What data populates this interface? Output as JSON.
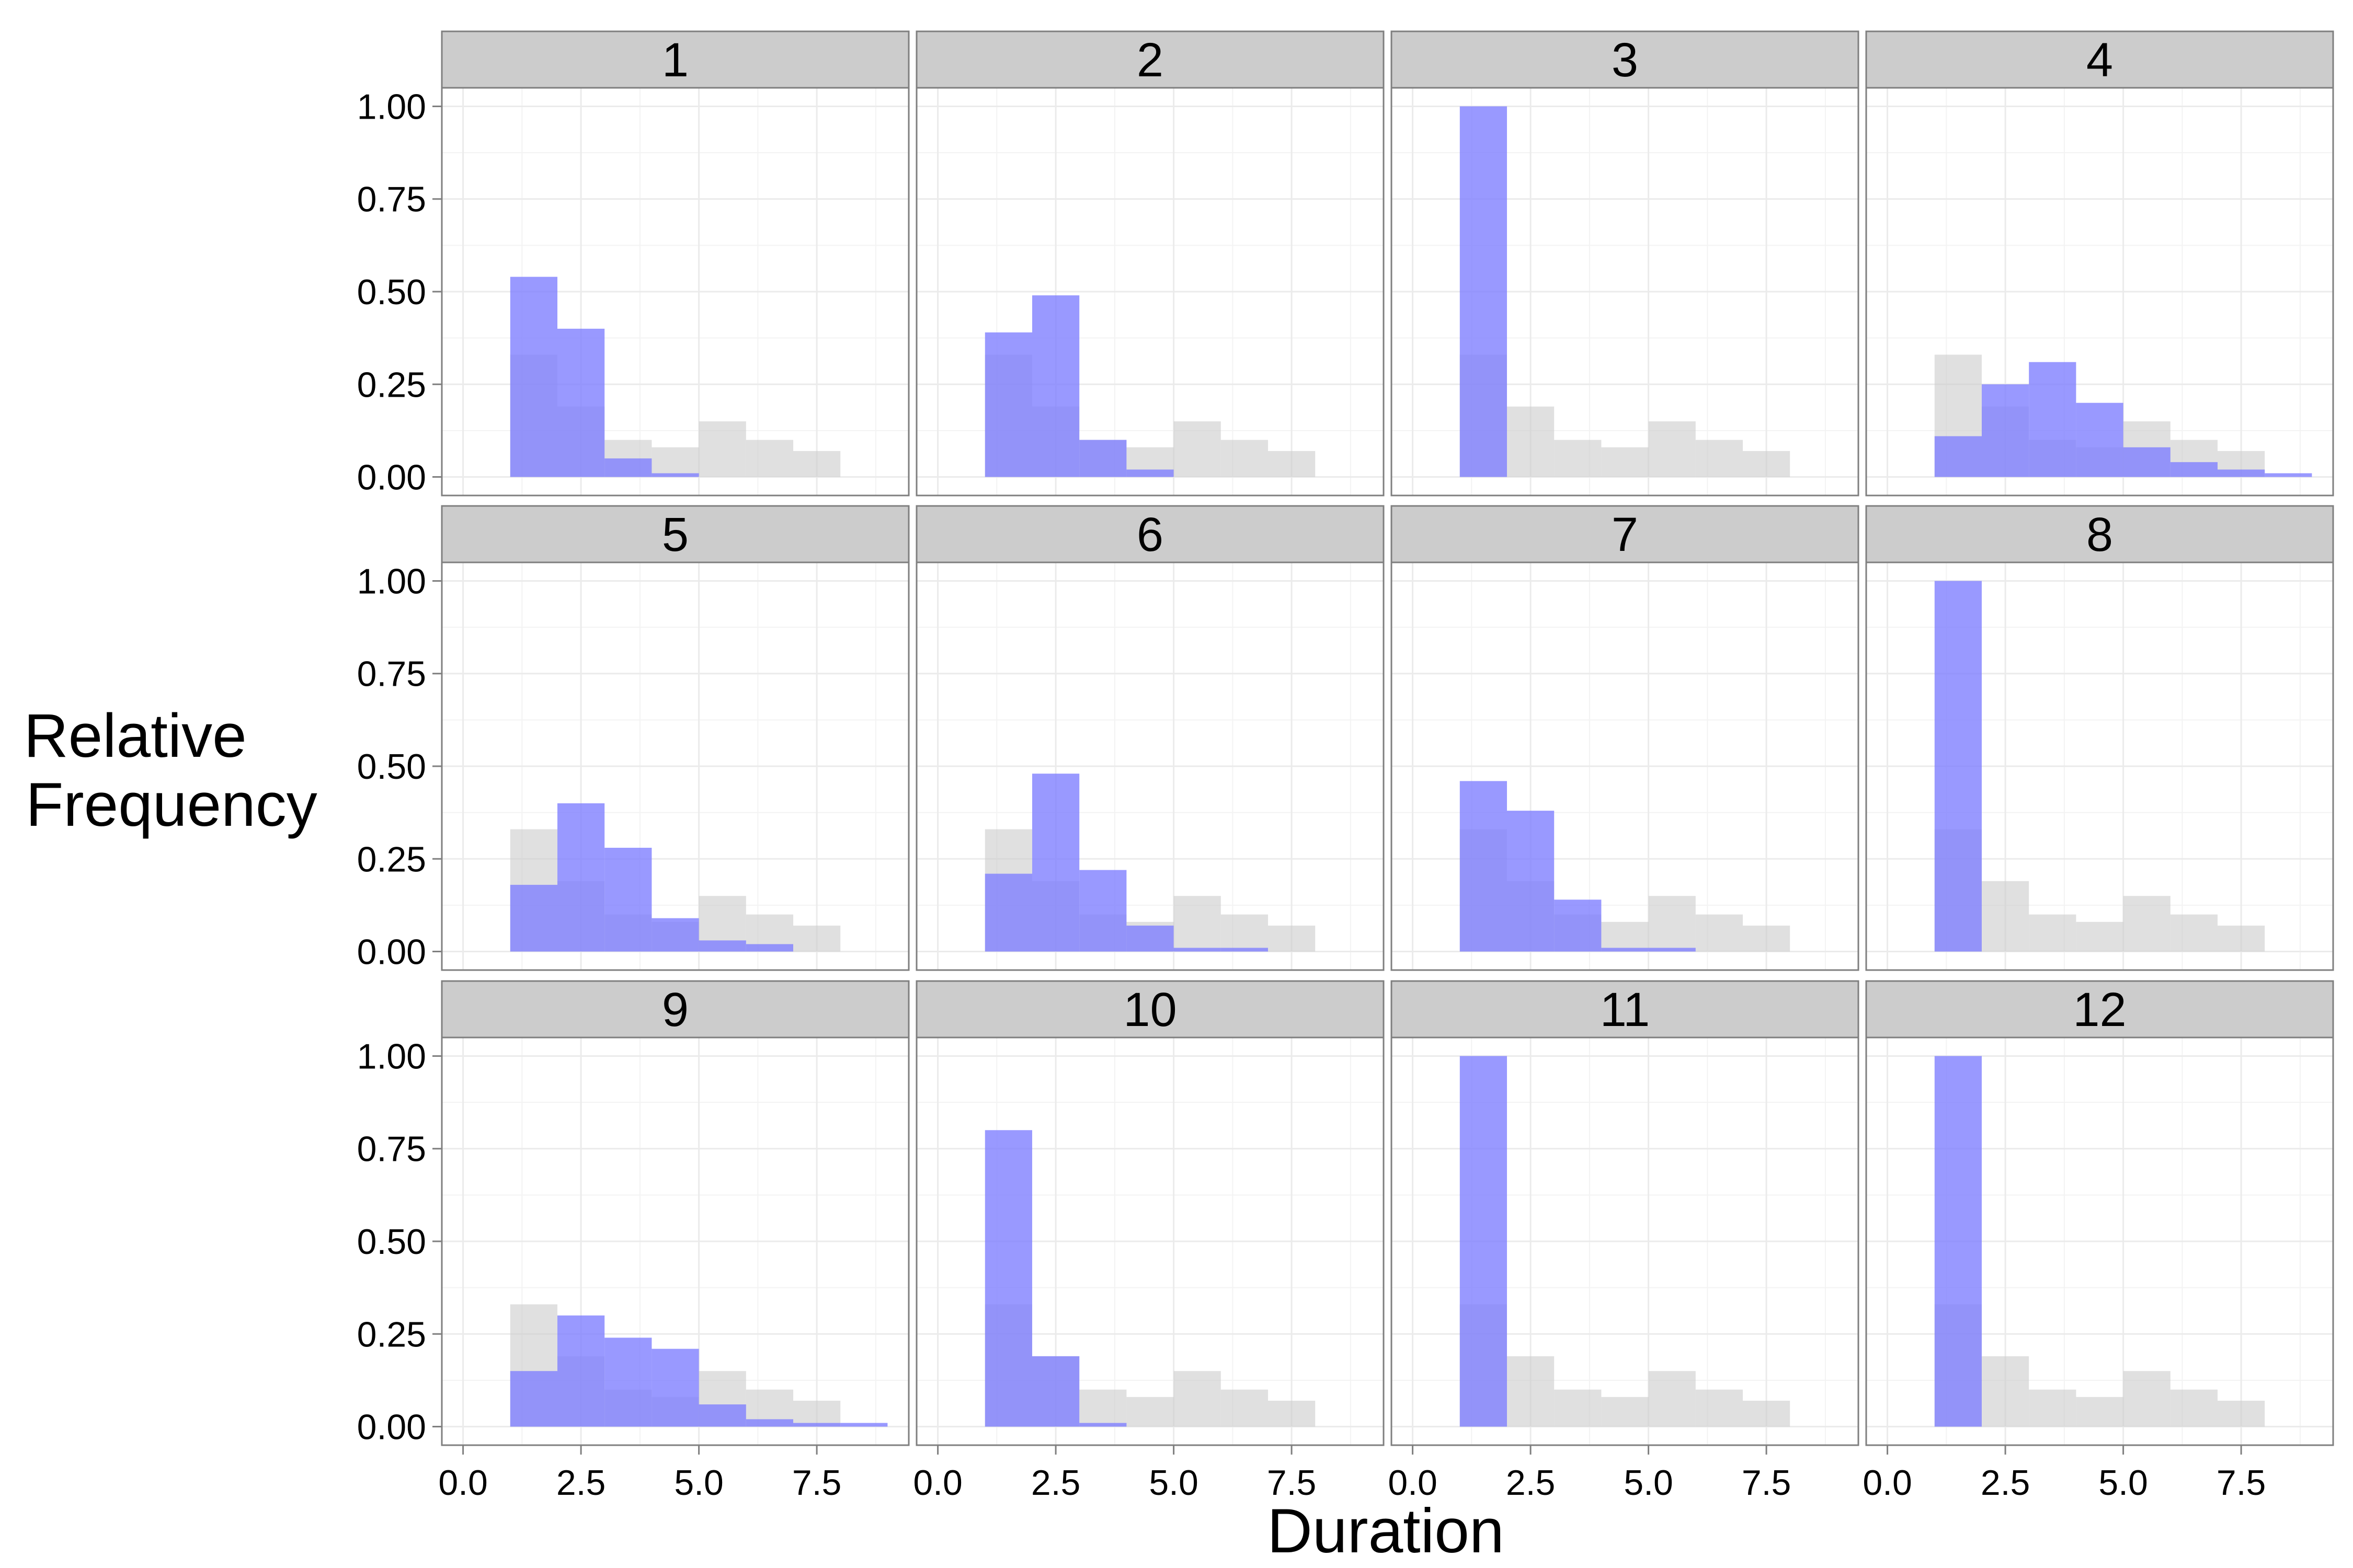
{
  "chart_data": {
    "type": "bar",
    "subtype": "faceted-histogram",
    "xlabel": "Duration",
    "ylabel": "Relative Frequency",
    "xlim": [
      -0.45,
      9.45
    ],
    "ylim": [
      -0.05,
      1.05
    ],
    "x_ticks": [
      0.0,
      2.5,
      5.0,
      7.5
    ],
    "x_tick_labels": [
      "0.0",
      "2.5",
      "5.0",
      "7.5"
    ],
    "y_ticks": [
      0.0,
      0.25,
      0.5,
      0.75,
      1.0
    ],
    "y_tick_labels": [
      "0.00",
      "0.25",
      "0.50",
      "0.75",
      "1.00"
    ],
    "grid": true,
    "legend": "none",
    "colors": {
      "overall": "#cccccc",
      "panel": "#8080ff",
      "strip_background": "#cccccc",
      "panel_border": "#7f7f7f",
      "grid": "#ebebeb"
    },
    "bin_edges": [
      1,
      2,
      3,
      4,
      5,
      6,
      7,
      8,
      9
    ],
    "overall_values": [
      0.33,
      0.19,
      0.1,
      0.08,
      0.15,
      0.1,
      0.07,
      0.0
    ],
    "panels": [
      {
        "label": "1",
        "values": [
          0.54,
          0.4,
          0.05,
          0.01,
          0.0,
          0.0,
          0.0,
          0.0
        ]
      },
      {
        "label": "2",
        "values": [
          0.39,
          0.49,
          0.1,
          0.02,
          0.0,
          0.0,
          0.0,
          0.0
        ]
      },
      {
        "label": "3",
        "values": [
          1.0,
          0.0,
          0.0,
          0.0,
          0.0,
          0.0,
          0.0,
          0.0
        ]
      },
      {
        "label": "4",
        "values": [
          0.11,
          0.25,
          0.31,
          0.2,
          0.08,
          0.04,
          0.02,
          0.01
        ]
      },
      {
        "label": "5",
        "values": [
          0.18,
          0.4,
          0.28,
          0.09,
          0.03,
          0.02,
          0.0,
          0.0
        ]
      },
      {
        "label": "6",
        "values": [
          0.21,
          0.48,
          0.22,
          0.07,
          0.01,
          0.01,
          0.0,
          0.0
        ]
      },
      {
        "label": "7",
        "values": [
          0.46,
          0.38,
          0.14,
          0.01,
          0.01,
          0.0,
          0.0,
          0.0
        ]
      },
      {
        "label": "8",
        "values": [
          1.0,
          0.0,
          0.0,
          0.0,
          0.0,
          0.0,
          0.0,
          0.0
        ]
      },
      {
        "label": "9",
        "values": [
          0.15,
          0.3,
          0.24,
          0.21,
          0.06,
          0.02,
          0.01,
          0.01
        ]
      },
      {
        "label": "10",
        "values": [
          0.8,
          0.19,
          0.01,
          0.0,
          0.0,
          0.0,
          0.0,
          0.0
        ]
      },
      {
        "label": "11",
        "values": [
          1.0,
          0.0,
          0.0,
          0.0,
          0.0,
          0.0,
          0.0,
          0.0
        ]
      },
      {
        "label": "12",
        "values": [
          1.0,
          0.0,
          0.0,
          0.0,
          0.0,
          0.0,
          0.0,
          0.0
        ]
      }
    ]
  }
}
